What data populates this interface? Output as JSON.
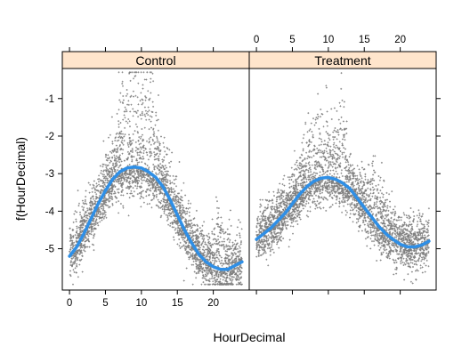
{
  "chart_data": {
    "type": "scatter",
    "xlabel": "HourDecimal",
    "ylabel": "f(HourDecimal)",
    "xlim": [
      -1,
      25
    ],
    "ylim": [
      -6.1,
      -0.2
    ],
    "x_ticks": [
      0,
      5,
      10,
      15,
      20
    ],
    "y_ticks": [
      -1,
      -2,
      -3,
      -4,
      -5
    ],
    "grid": false,
    "legend": "none",
    "colors": {
      "points": "#7f7f7f",
      "smooth": "#2f8fe6",
      "strip": "#ffe5cc",
      "frame": "#000000"
    },
    "panels": [
      {
        "name": "Control",
        "smooth": {
          "x": [
            0,
            1,
            2,
            3,
            4,
            5,
            6,
            7,
            8,
            9,
            10,
            11,
            12,
            13,
            14,
            15,
            16,
            17,
            18,
            19,
            20,
            21,
            22,
            23,
            24
          ],
          "y": [
            -5.2,
            -4.95,
            -4.6,
            -4.2,
            -3.8,
            -3.45,
            -3.15,
            -2.95,
            -2.85,
            -2.82,
            -2.85,
            -2.95,
            -3.1,
            -3.35,
            -3.7,
            -4.1,
            -4.5,
            -4.85,
            -5.15,
            -5.35,
            -5.48,
            -5.55,
            -5.55,
            -5.45,
            -5.35
          ]
        },
        "scatter": {
          "count": 3200,
          "spread_low": 0.55,
          "spread_high": 0.7,
          "peaks": [
            {
              "x": 9.5,
              "width": 2.2,
              "height": 1.9
            },
            {
              "x": 11.5,
              "width": 0.8,
              "height": 1.6
            },
            {
              "x": 7.5,
              "width": 1.5,
              "height": 0.9
            },
            {
              "x": 21.0,
              "width": 1.0,
              "height": 0.8
            }
          ]
        }
      },
      {
        "name": "Treatment",
        "smooth": {
          "x": [
            0,
            1,
            2,
            3,
            4,
            5,
            6,
            7,
            8,
            9,
            10,
            11,
            12,
            13,
            14,
            15,
            16,
            17,
            18,
            19,
            20,
            21,
            22,
            23,
            24
          ],
          "y": [
            -4.75,
            -4.6,
            -4.45,
            -4.25,
            -4.05,
            -3.8,
            -3.55,
            -3.35,
            -3.2,
            -3.12,
            -3.1,
            -3.15,
            -3.25,
            -3.4,
            -3.65,
            -3.9,
            -4.15,
            -4.4,
            -4.6,
            -4.75,
            -4.88,
            -4.95,
            -4.95,
            -4.9,
            -4.8
          ]
        },
        "scatter": {
          "count": 3200,
          "spread_low": 0.5,
          "spread_high": 0.65,
          "peaks": [
            {
              "x": 9.0,
              "width": 2.5,
              "height": 1.2
            },
            {
              "x": 11.8,
              "width": 0.7,
              "height": 1.5
            },
            {
              "x": 16.5,
              "width": 1.5,
              "height": 0.8
            }
          ]
        }
      }
    ]
  }
}
